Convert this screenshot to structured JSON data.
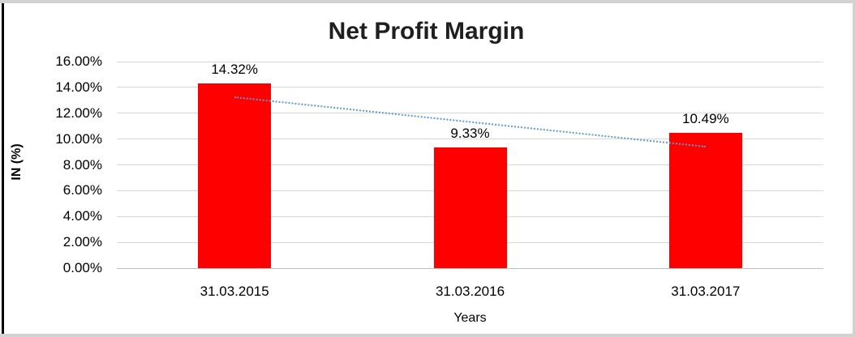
{
  "chart_data": {
    "type": "bar",
    "title": "Net Profit Margin",
    "categories": [
      "31.03.2015",
      "31.03.2016",
      "31.03.2017"
    ],
    "values": [
      14.32,
      9.33,
      10.49
    ],
    "data_labels": [
      "14.32%",
      "9.33%",
      "10.49%"
    ],
    "xlabel": "Years",
    "ylabel": "IN (%)",
    "ylim": [
      0,
      16
    ],
    "ytick_step": 2,
    "ytick_labels": [
      "0.00%",
      "2.00%",
      "4.00%",
      "6.00%",
      "8.00%",
      "10.00%",
      "12.00%",
      "14.00%",
      "16.00%"
    ],
    "grid": true,
    "legend": false,
    "bar_color": "#FF0000",
    "trendline": {
      "type": "linear",
      "start_value": 13.3,
      "end_value": 9.47,
      "color": "#5B9BD5",
      "style": "dotted"
    }
  },
  "colors": {
    "background": "#FFFFFF",
    "gridline": "#D9D9D9",
    "axis_line": "#BFBFBF",
    "title_text": "#1F1F1F",
    "text": "#000000",
    "frame_border": "#D2D2D2",
    "left_edge_line": "#000000"
  }
}
